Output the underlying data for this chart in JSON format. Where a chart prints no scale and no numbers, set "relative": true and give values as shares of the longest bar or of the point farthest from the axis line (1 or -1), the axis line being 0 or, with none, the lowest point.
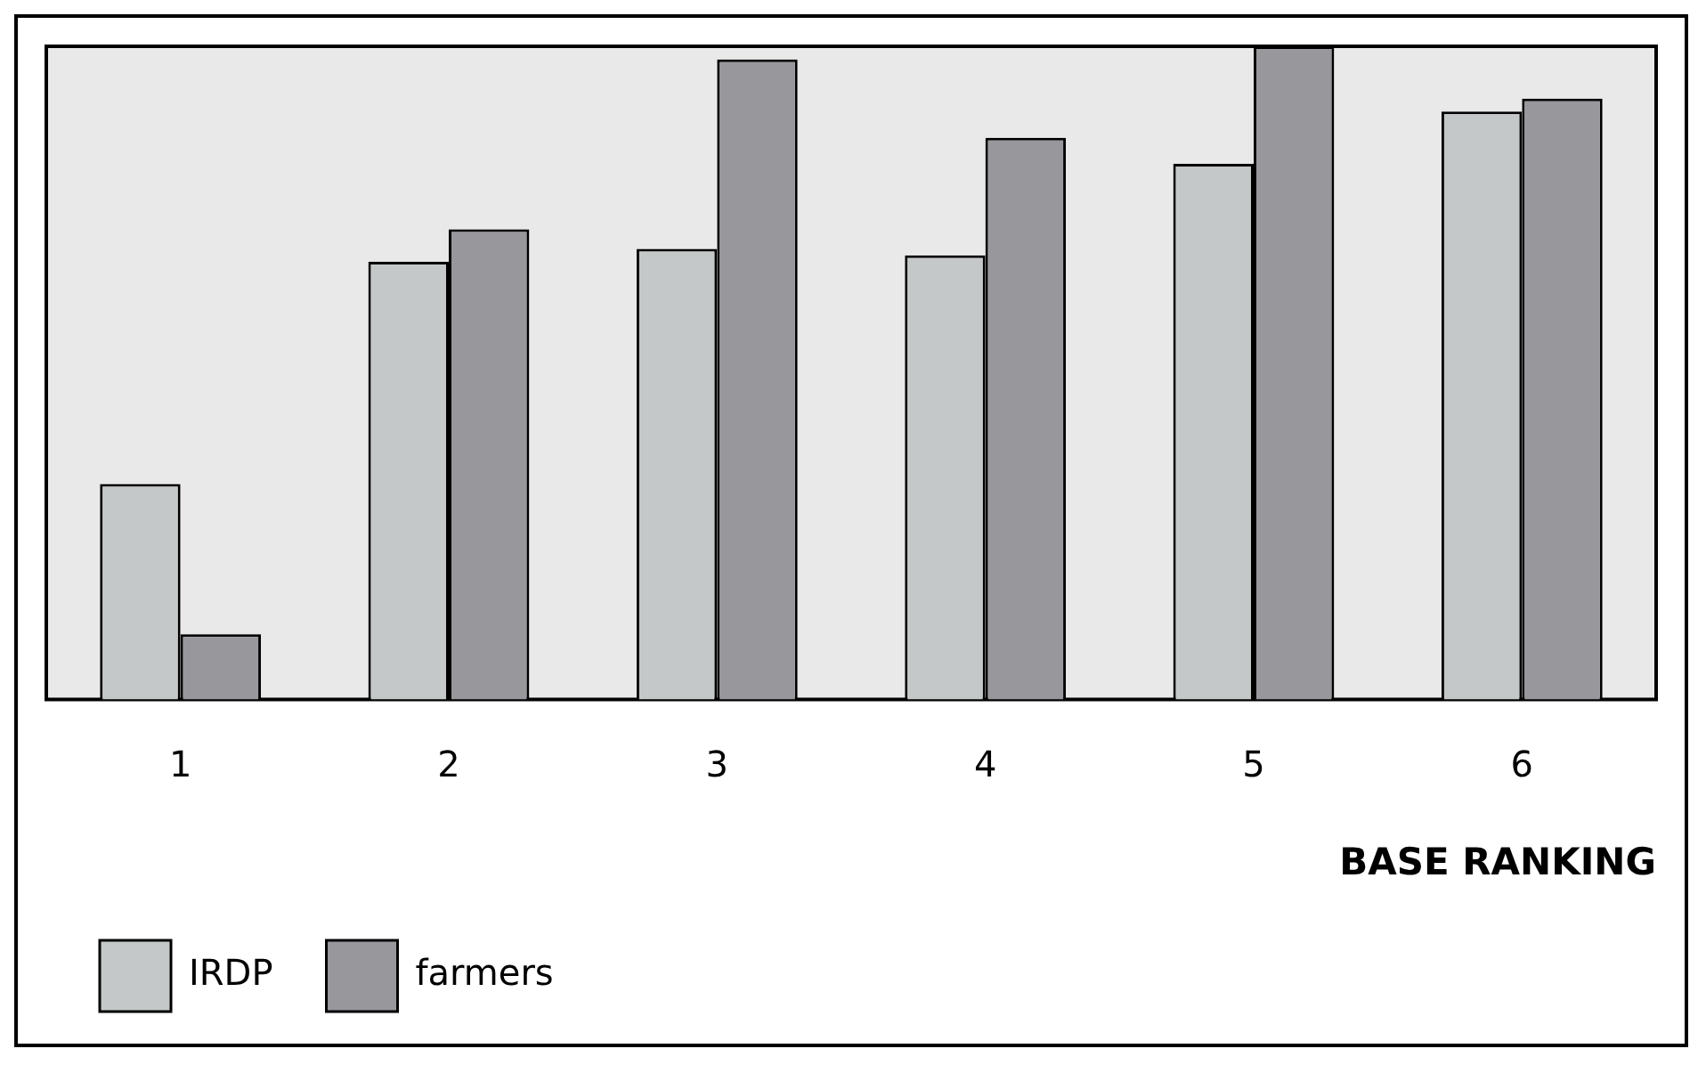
{
  "chart_data": {
    "type": "bar",
    "relative": true,
    "xlabel": "BASE RANKING",
    "categories": [
      "1",
      "2",
      "3",
      "4",
      "5",
      "6"
    ],
    "series": [
      {
        "name": "IRDP",
        "color": "#c4c8c8",
        "values": [
          0.33,
          0.67,
          0.69,
          0.68,
          0.82,
          0.9
        ]
      },
      {
        "name": "farmers",
        "color": "#98979c",
        "values": [
          0.1,
          0.72,
          0.98,
          0.86,
          1,
          0.92
        ]
      }
    ],
    "legend": "bottom left"
  }
}
